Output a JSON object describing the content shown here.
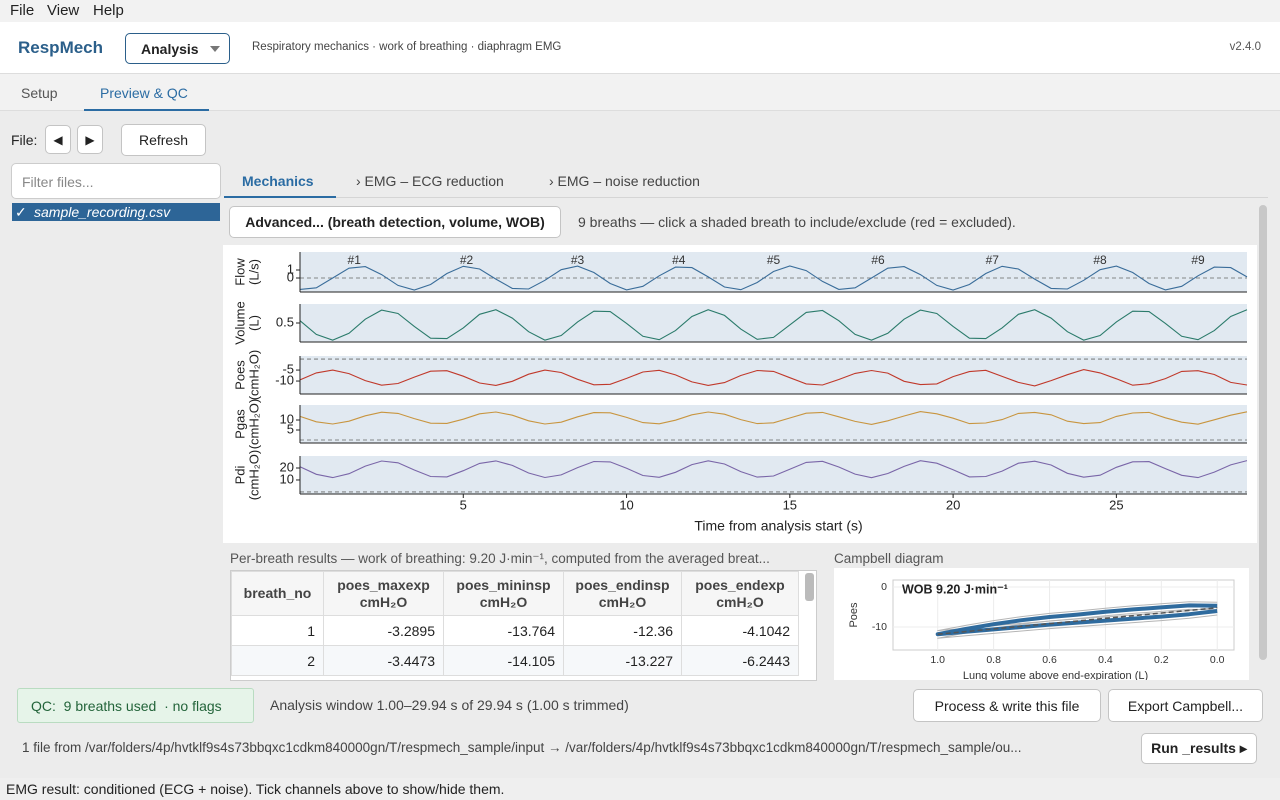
{
  "menu": [
    "File",
    "View",
    "Help"
  ],
  "header": {
    "app": "RespMech",
    "mode": "Analysis",
    "description": "Respiratory mechanics · work of breathing · diaphragm EMG",
    "version": "v2.4.0"
  },
  "tabs": [
    "Setup",
    "Preview & QC"
  ],
  "toolbar": {
    "file_label": "File:",
    "prev": "◀",
    "next": "▶",
    "refresh": "Refresh"
  },
  "files": {
    "filter_placeholder": "Filter files...",
    "check": "✓",
    "items": [
      "sample_recording.csv"
    ]
  },
  "subtabs": [
    "Mechanics",
    "› EMG – ECG reduction",
    "› EMG – noise reduction"
  ],
  "advanced_button": "Advanced... (breath detection, volume, WOB)",
  "hint": "9 breaths — click a shaded breath to include/exclude (red = excluded).",
  "chart_data": [
    {
      "type": "line",
      "xlabel": "Time from analysis start (s)",
      "xlim": [
        0,
        29
      ],
      "xticks": [
        5,
        10,
        15,
        20,
        25
      ],
      "breaths": {
        "labels": [
          "#1",
          "#2",
          "#3",
          "#4",
          "#5",
          "#6",
          "#7",
          "#8",
          "#9"
        ],
        "x": [
          1.66,
          5.1,
          8.5,
          11.6,
          14.5,
          17.7,
          21.2,
          24.5,
          27.5
        ]
      },
      "x": [
        0,
        0.5,
        1,
        1.5,
        2,
        2.5,
        3,
        3.5,
        4,
        4.5,
        5,
        5.5,
        6,
        6.5,
        7,
        7.5,
        8,
        8.5,
        9,
        9.5,
        10,
        10.5,
        11,
        11.5,
        12,
        12.5,
        13,
        13.5,
        14,
        14.5,
        15,
        15.5,
        16,
        16.5,
        17,
        17.5,
        18,
        18.5,
        19,
        19.5,
        20,
        20.5,
        21,
        21.5,
        22,
        22.5,
        23,
        23.5,
        24,
        24.5,
        25,
        25.5,
        26,
        26.5,
        27,
        27.5,
        28,
        28.5,
        29
      ],
      "series": [
        {
          "ylabel": [
            "Flow",
            "(L/s)"
          ],
          "color": "#3a6d9a",
          "ylim": [
            -1.75,
            3.25
          ],
          "yticks": [
            0,
            1
          ],
          "values": [
            -1.42,
            -1.22,
            0,
            1.22,
            1.42,
            0.42,
            -0.93,
            -1.5,
            -0.81,
            0.56,
            1.46,
            1.13,
            -0.14,
            -1.3,
            -1.37,
            -0.29,
            1.04,
            1.49,
            0.69,
            -0.69,
            -1.49,
            -1.04,
            0.28,
            1.36,
            1.3,
            0.14,
            -1.13,
            -1.46,
            -0.56,
            0.81,
            1.5,
            0.93,
            -0.42,
            -1.42,
            -1.22,
            0,
            1.22,
            1.42,
            0.42,
            -0.93,
            -1.5,
            -0.81,
            0.56,
            1.46,
            1.13,
            -0.14,
            -1.3,
            -1.37,
            -0.29,
            1.04,
            1.49,
            0.69,
            -0.69,
            -1.49,
            -1.04,
            0.28,
            1.36,
            1.3,
            0.14
          ]
        },
        {
          "ylabel": [
            "Volume",
            "(L)"
          ],
          "color": "#2b7b6b",
          "ylim": [
            0,
            1
          ],
          "yticks": [
            0.5
          ],
          "values": [
            0.56,
            0.2,
            0.05,
            0.23,
            0.6,
            0.84,
            0.75,
            0.41,
            0.1,
            0.09,
            0.37,
            0.73,
            0.85,
            0.63,
            0.27,
            0.05,
            0.17,
            0.53,
            0.81,
            0.8,
            0.49,
            0.15,
            0.06,
            0.3,
            0.67,
            0.85,
            0.7,
            0.34,
            0.07,
            0.12,
            0.45,
            0.78,
            0.83,
            0.56,
            0.2,
            0.05,
            0.23,
            0.6,
            0.84,
            0.75,
            0.41,
            0.1,
            0.09,
            0.37,
            0.73,
            0.85,
            0.63,
            0.27,
            0.05,
            0.17,
            0.53,
            0.81,
            0.8,
            0.49,
            0.15,
            0.06,
            0.3,
            0.67,
            0.85
          ]
        },
        {
          "ylabel": [
            "Poes",
            "(cmH₂O)"
          ],
          "color": "#c0392b",
          "ylim": [
            -15.9,
            1.4
          ],
          "yticks": [
            -5,
            -10
          ],
          "values": [
            -9.5,
            -6.3,
            -5,
            -6.6,
            -9.8,
            -11.9,
            -11.1,
            -8.2,
            -5.5,
            -5.3,
            -7.8,
            -10.9,
            -12,
            -10.1,
            -6.9,
            -5,
            -6.1,
            -9.2,
            -11.7,
            -11.5,
            -8.8,
            -5.9,
            -5.1,
            -7.2,
            -10.4,
            -12,
            -10.7,
            -7.5,
            -5.2,
            -5.6,
            -8.5,
            -11.3,
            -11.8,
            -9.3,
            -6.5,
            -5.2,
            -6.4,
            -10.1,
            -11.6,
            -11.3,
            -8,
            -5.7,
            -5.1,
            -7.9,
            -10.6,
            -12.2,
            -9.8,
            -7.1,
            -4.8,
            -6.3,
            -9,
            -11.9,
            -11.2,
            -8.9,
            -5.6,
            -5.3,
            -7,
            -10.6,
            -11.8
          ]
        },
        {
          "ylabel": [
            "Pgas",
            "(cmH₂O)"
          ],
          "color": "#c8953f",
          "ylim": [
            -1.5,
            17.5
          ],
          "yticks": [
            10,
            5
          ],
          "values": [
            11.8,
            9.1,
            8,
            9.4,
            12.1,
            13.9,
            13.3,
            10.7,
            8.4,
            8.3,
            10.4,
            13.1,
            14,
            12.4,
            9.6,
            8,
            8.9,
            11.6,
            13.7,
            13.6,
            11.3,
            8.7,
            8.1,
            9.9,
            12.6,
            14,
            12.9,
            10.2,
            8.2,
            8.6,
            11,
            13.4,
            13.8,
            11.6,
            9.3,
            7.8,
            9.6,
            12,
            14.2,
            13.1,
            10.9,
            8.2,
            8.5,
            10.2,
            13.3,
            13.8,
            12.6,
            9.4,
            8.2,
            8.7,
            11.8,
            13.5,
            13.8,
            11.1,
            8.9,
            7.9,
            10.1,
            12.4,
            14.1
          ]
        },
        {
          "ylabel": [
            "Pdi",
            "(cmH₂O)"
          ],
          "color": "#7a66a8",
          "ylim": [
            -1.7,
            30
          ],
          "yticks": [
            20,
            10
          ],
          "values": [
            21,
            14.7,
            12,
            15.2,
            21.6,
            25.8,
            24.3,
            18.3,
            12.9,
            12.6,
            17.7,
            23.8,
            25.9,
            22.2,
            15.8,
            12.1,
            14.2,
            20.3,
            25.4,
            25.1,
            19.7,
            13.7,
            12.2,
            16.4,
            22.8,
            26,
            23.3,
            17,
            12.4,
            13.3,
            19,
            24.7,
            25.6,
            20.8,
            14.9,
            11.9,
            15.4,
            21.3,
            26.1,
            24,
            18.6,
            12.6,
            12.9,
            17.4,
            24,
            25.7,
            22.5,
            15.6,
            12.3,
            14,
            20.6,
            25.2,
            25.3,
            19.5,
            13.9,
            12,
            16.6,
            22.6,
            26.2
          ]
        }
      ]
    },
    {
      "type": "line",
      "heading": "Campbell diagram",
      "title": "WOB 9.20 J·min⁻¹",
      "xlabel": "Lung volume above end-expiration (L)",
      "ylabel": "Poes",
      "xlim": [
        1.16,
        -0.06
      ],
      "xticks": [
        {
          "value": 1,
          "label": "1.0"
        },
        {
          "value": 0.8,
          "label": "0.8"
        },
        {
          "value": 0.6,
          "label": "0.6"
        },
        {
          "value": 0.4,
          "label": "0.4"
        },
        {
          "value": 0.2,
          "label": "0.2"
        },
        {
          "value": 0,
          "label": "0.0"
        }
      ],
      "ylim": [
        -15.75,
        1.75
      ],
      "yticks": [
        0,
        -10
      ],
      "grid": true,
      "series": [
        {
          "color": "#b5b5b5",
          "line_width": 1,
          "dashed": false,
          "x": [
            0,
            0.1,
            0.2,
            0.3,
            0.4,
            0.5,
            0.6,
            0.7,
            0.8,
            0.9,
            1,
            0.9,
            0.8,
            0.7,
            0.6,
            0.5,
            0.4,
            0.3,
            0.2,
            0.1,
            0
          ],
          "values": [
            -5.1,
            -5.9,
            -6.5,
            -7,
            -7.5,
            -8,
            -8.5,
            -9.1,
            -9.7,
            -10.3,
            -10.9,
            -9.6,
            -8.4,
            -7.4,
            -6.6,
            -6,
            -5.3,
            -4.7,
            -4.2,
            -3.7,
            -3.8
          ]
        },
        {
          "color": "#b5b5b5",
          "line_width": 1,
          "dashed": false,
          "x": [
            0,
            0.1,
            0.2,
            0.3,
            0.4,
            0.5,
            0.6,
            0.7,
            0.8,
            0.9,
            1,
            0.9,
            0.8,
            0.7,
            0.6,
            0.5,
            0.4,
            0.3,
            0.2,
            0.1,
            0
          ],
          "values": [
            -7,
            -7.8,
            -8.4,
            -8.9,
            -9.4,
            -9.9,
            -10.4,
            -11,
            -11.6,
            -12.2,
            -12.8,
            -11.5,
            -10.3,
            -9.3,
            -8.5,
            -7.9,
            -7.2,
            -6.6,
            -6.1,
            -5.6,
            -5.7
          ]
        },
        {
          "color": "#2f6b9e",
          "line_width": 4,
          "dashed": false,
          "x": [
            0,
            0.1,
            0.2,
            0.3,
            0.4,
            0.5,
            0.6,
            0.7,
            0.8,
            0.9,
            1,
            0.9,
            0.8,
            0.7,
            0.6,
            0.5,
            0.4,
            0.3,
            0.2,
            0.1,
            0
          ],
          "values": [
            -6,
            -6.8,
            -7.4,
            -7.9,
            -8.4,
            -8.9,
            -9.4,
            -10,
            -10.6,
            -11.2,
            -11.8,
            -10.5,
            -9.3,
            -8.3,
            -7.5,
            -6.9,
            -6.2,
            -5.6,
            -5.1,
            -4.6,
            -4.7
          ]
        },
        {
          "color": "#555555",
          "line_width": 1.5,
          "dashed": true,
          "x": [
            1,
            0
          ],
          "values": [
            -11.8,
            -5.2
          ]
        }
      ]
    }
  ],
  "results": {
    "caption": "Per-breath results — work of breathing: 9.20 J·min⁻¹, computed from the averaged breat...",
    "columns": [
      {
        "name": "breath_no"
      },
      {
        "name": "poes_maxexp",
        "unit": "cmH₂O"
      },
      {
        "name": "poes_mininsp",
        "unit": "cmH₂O"
      },
      {
        "name": "poes_endinsp",
        "unit": "cmH₂O"
      },
      {
        "name": "poes_endexp",
        "unit": "cmH₂O"
      }
    ],
    "rows": [
      [
        1,
        -3.2895,
        -13.764,
        -12.36,
        -4.1042
      ],
      [
        2,
        -3.4473,
        -14.105,
        -13.227,
        -6.2443
      ]
    ]
  },
  "qc": {
    "badge": "QC:  9 breaths used  · no flags",
    "window": "Analysis window 1.00–29.94 s of 29.94 s (1.00 s trimmed)",
    "process": "Process & write this file",
    "export": "Export Campbell..."
  },
  "footer": {
    "path": "1 file from /var/folders/4p/hvtklf9s4s73bbqxc1cdkm840000gn/T/respmech_sample/input → /var/folders/4p/hvtklf9s4s73bbqxc1cdkm840000gn/T/respmech_sample/ou...",
    "run": "Run _results ▸",
    "status": "EMG result: conditioned (ECG + noise). Tick channels above to show/hide them."
  }
}
